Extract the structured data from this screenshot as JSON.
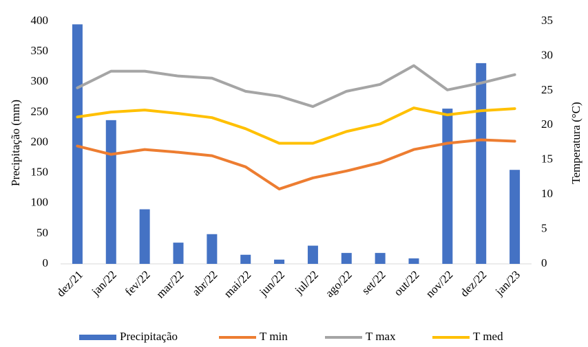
{
  "chart_data": {
    "type": "bar_line",
    "categories": [
      "dez/21",
      "jan/22",
      "fev/22",
      "mar/22",
      "abr/22",
      "mai/22",
      "jun/22",
      "jul/22",
      "ago/22",
      "set/22",
      "out/22",
      "nov/22",
      "dez/22",
      "jan/23"
    ],
    "ylabel": "Precipitação (mm)",
    "y2label": "Temperatura (°C)",
    "ylim": [
      0,
      400
    ],
    "yticks": [
      0,
      50,
      100,
      150,
      200,
      250,
      300,
      350,
      400
    ],
    "y2lim": [
      0,
      35
    ],
    "y2ticks": [
      0,
      5,
      10,
      15,
      20,
      25,
      30,
      35
    ],
    "legend": "bottom",
    "series": [
      {
        "name": "Precipitação",
        "type": "bar",
        "color": "#4472c4",
        "values": [
          395,
          237,
          90,
          35,
          49,
          15,
          7,
          30,
          18,
          18,
          9,
          256,
          331,
          155
        ]
      },
      {
        "name": "T min",
        "type": "line",
        "axis": "y2",
        "color": "#ed7d31",
        "values": [
          17.0,
          15.8,
          16.5,
          16.1,
          15.6,
          14.0,
          10.8,
          12.4,
          13.4,
          14.6,
          16.5,
          17.4,
          17.9,
          17.7
        ]
      },
      {
        "name": "T max",
        "type": "line",
        "axis": "y2",
        "color": "#a5a5a5",
        "values": [
          25.4,
          27.8,
          27.8,
          27.1,
          26.8,
          24.9,
          24.2,
          22.7,
          24.9,
          25.9,
          28.6,
          25.1,
          26.1,
          27.3
        ]
      },
      {
        "name": "T med",
        "type": "line",
        "axis": "y2",
        "color": "#ffc000",
        "values": [
          21.2,
          21.9,
          22.2,
          21.7,
          21.1,
          19.5,
          17.4,
          17.4,
          19.1,
          20.2,
          22.5,
          21.5,
          22.1,
          22.4
        ]
      }
    ]
  }
}
